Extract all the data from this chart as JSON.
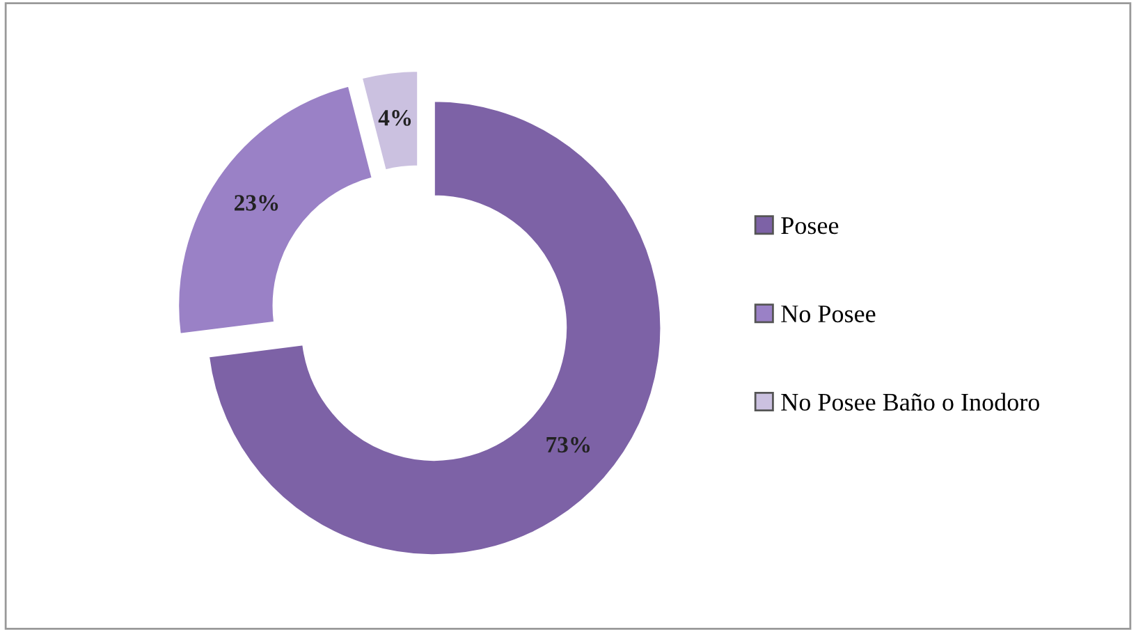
{
  "chart_data": {
    "type": "donut",
    "categories": [
      "Posee",
      "No Posee",
      "No Posee Baño o Inodoro"
    ],
    "values": [
      73,
      23,
      4
    ],
    "colors": [
      "#7d62a6",
      "#9a81c6",
      "#cbc1e0"
    ],
    "value_labels": [
      "73%",
      "23%",
      "4%"
    ],
    "legend": "right"
  }
}
